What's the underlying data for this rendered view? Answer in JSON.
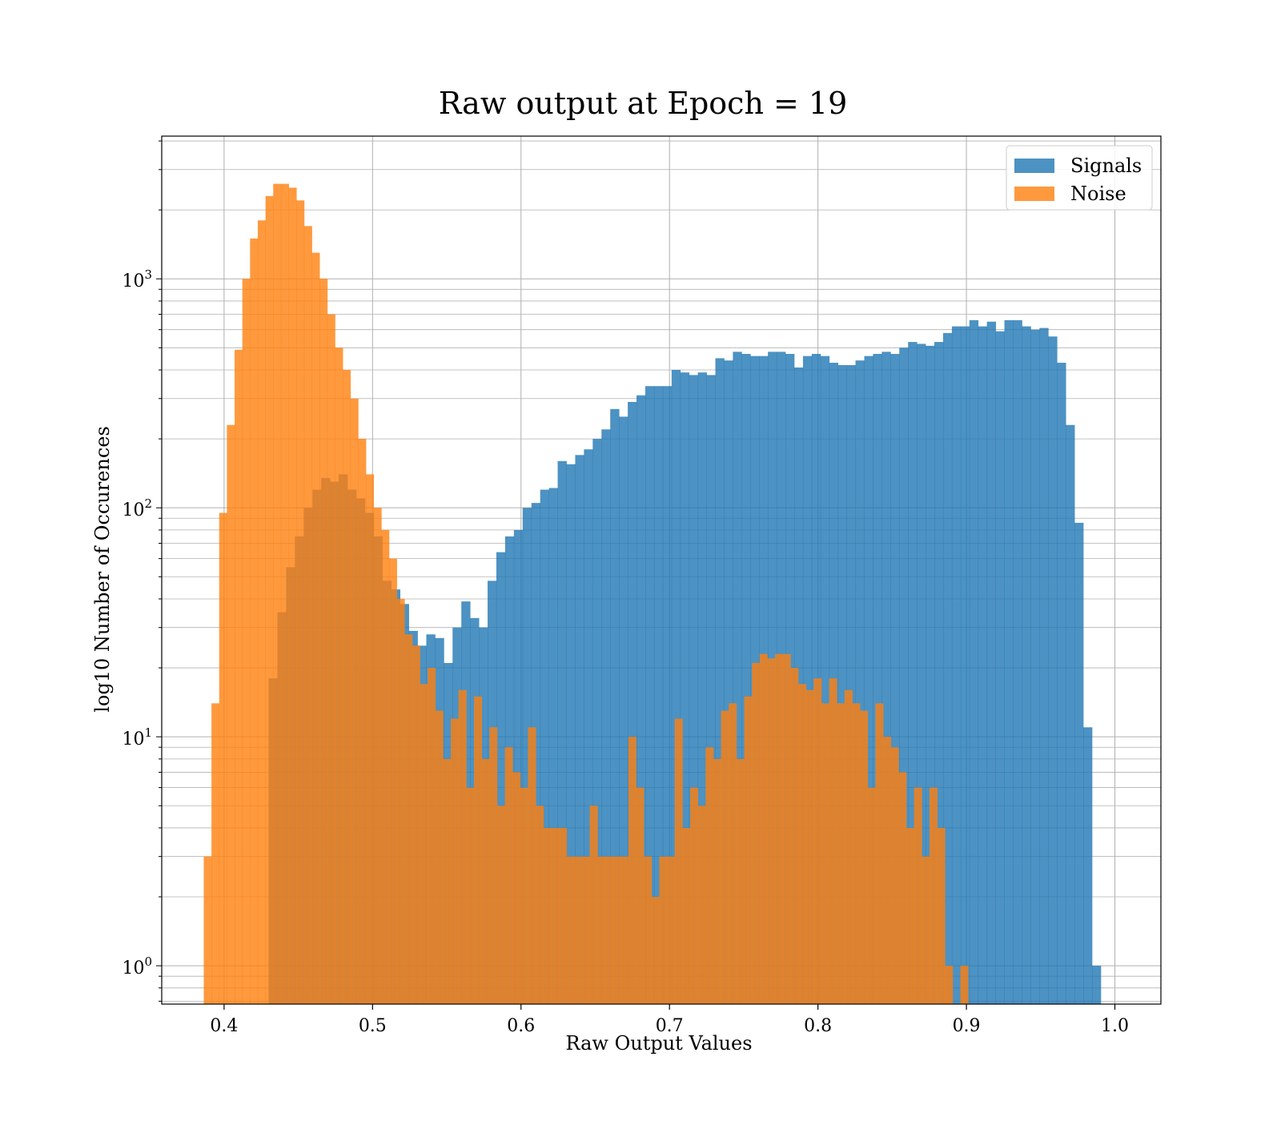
{
  "chart_data": {
    "type": "histogram",
    "title": "Raw output at Epoch = 19",
    "xlabel": "Raw Output Values",
    "ylabel": "log10 Number of Occurences",
    "xscale": "linear",
    "yscale": "log",
    "xlim": [
      0.358,
      1.031
    ],
    "ylim": [
      0.68,
      4200
    ],
    "xticks": [
      0.4,
      0.5,
      0.6,
      0.7,
      0.8,
      0.9,
      1.0
    ],
    "xtick_labels": [
      "0.4",
      "0.5",
      "0.6",
      "0.7",
      "0.8",
      "0.9",
      "1.0"
    ],
    "yticks": [
      1,
      10,
      100,
      1000
    ],
    "ytick_labels": [
      {
        "base": "10",
        "exp": "0"
      },
      {
        "base": "10",
        "exp": "1"
      },
      {
        "base": "10",
        "exp": "2"
      },
      {
        "base": "10",
        "exp": "3"
      }
    ],
    "grid": true,
    "legend_position": "top-right",
    "series": [
      {
        "name": "Signals",
        "color": "#1f77b4",
        "opacity": 0.8,
        "x_start": 0.4123,
        "bin_width": 0.0059,
        "values": [
          0,
          0,
          0,
          18,
          35,
          55,
          75,
          100,
          120,
          135,
          130,
          140,
          120,
          110,
          95,
          75,
          48,
          44,
          38,
          29,
          25,
          28,
          27,
          21,
          30,
          39,
          33,
          30,
          48,
          64,
          75,
          80,
          100,
          105,
          120,
          122,
          160,
          155,
          170,
          180,
          200,
          220,
          270,
          250,
          290,
          310,
          340,
          340,
          340,
          400,
          390,
          380,
          390,
          380,
          450,
          440,
          480,
          470,
          460,
          460,
          480,
          480,
          470,
          410,
          460,
          470,
          460,
          430,
          420,
          420,
          440,
          460,
          470,
          480,
          470,
          500,
          530,
          520,
          510,
          530,
          580,
          620,
          620,
          660,
          620,
          650,
          590,
          660,
          660,
          620,
          600,
          610,
          560,
          430,
          230,
          86,
          11,
          1
        ]
      },
      {
        "name": "Noise",
        "color": "#ff7f0e",
        "opacity": 0.8,
        "x_start": 0.3863,
        "bin_width": 0.0052,
        "values": [
          3,
          14,
          95,
          230,
          490,
          1000,
          1500,
          1800,
          2300,
          2600,
          2600,
          2500,
          2200,
          1700,
          1300,
          1000,
          700,
          500,
          400,
          300,
          200,
          140,
          100,
          80,
          60,
          40,
          28,
          25,
          17,
          20,
          13,
          8,
          12,
          16,
          6,
          15,
          8,
          11,
          5,
          9,
          7,
          6,
          11,
          5,
          4,
          4,
          4,
          3,
          3,
          3,
          5,
          3,
          3,
          3,
          3,
          10,
          6,
          3,
          2,
          3,
          3,
          12,
          4,
          6,
          5,
          9,
          8,
          13,
          14,
          8,
          15,
          21,
          23,
          22,
          23,
          23,
          20,
          17,
          16,
          18,
          14,
          18,
          14,
          16,
          14,
          13,
          6,
          14,
          10,
          9,
          7,
          4,
          6,
          3,
          6,
          4,
          1,
          0,
          1
        ]
      }
    ]
  }
}
